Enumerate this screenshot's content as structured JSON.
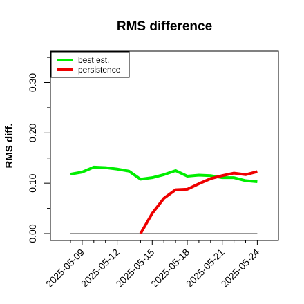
{
  "chart_data": {
    "type": "line",
    "title": "RMS difference",
    "xlabel": "",
    "ylabel": "RMS diff.",
    "x": [
      "2025-05-08",
      "2025-05-09",
      "2025-05-10",
      "2025-05-11",
      "2025-05-12",
      "2025-05-13",
      "2025-05-14",
      "2025-05-15",
      "2025-05-16",
      "2025-05-17",
      "2025-05-18",
      "2025-05-19",
      "2025-05-20",
      "2025-05-21",
      "2025-05-22",
      "2025-05-23",
      "2025-05-24"
    ],
    "xticks": [
      "2025-05-09",
      "2025-05-12",
      "2025-05-15",
      "2025-05-18",
      "2025-05-21",
      "2025-05-24"
    ],
    "yticks": [
      "0.00",
      "0.10",
      "0.20",
      "0.30"
    ],
    "ylim": [
      -0.012,
      0.365
    ],
    "series": [
      {
        "name": "best est.",
        "color": "#00ee00",
        "values": [
          0.118,
          0.122,
          0.132,
          0.131,
          0.128,
          0.124,
          0.108,
          0.111,
          0.117,
          0.125,
          0.114,
          0.116,
          0.115,
          0.111,
          0.111,
          0.105,
          0.103
        ]
      },
      {
        "name": "persistence",
        "color": "#ee0000",
        "values": [
          null,
          null,
          null,
          null,
          null,
          null,
          0.0,
          0.04,
          0.07,
          0.087,
          0.088,
          0.099,
          0.109,
          0.115,
          0.12,
          0.117,
          0.123
        ]
      }
    ],
    "reference_line": {
      "value": 0,
      "color": "#777777"
    },
    "legend_position": "top-left",
    "grid": false
  }
}
